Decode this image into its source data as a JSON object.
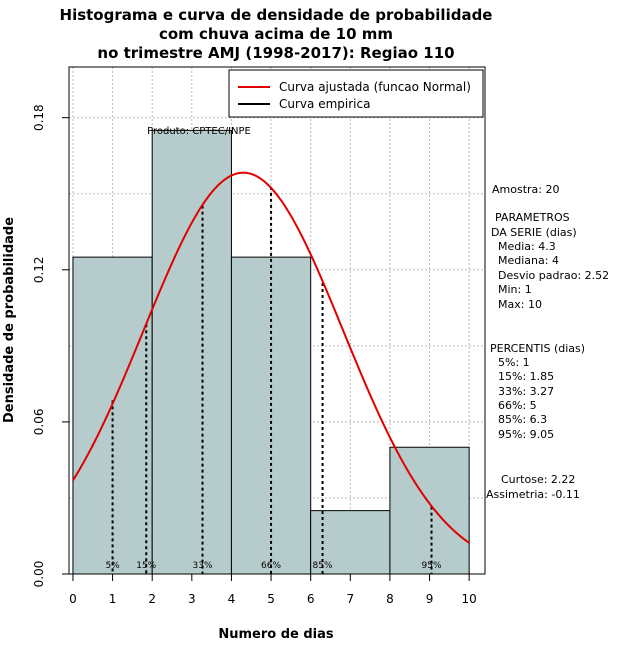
{
  "chart_data": {
    "type": "bar",
    "title_lines": [
      "Histograma e curva de densidade de probabilidade",
      "com chuva acima de 10 mm",
      "no trimestre AMJ (1998-2017): Regiao 110"
    ],
    "xlabel": "Numero de dias",
    "ylabel": "Densidade de probabilidade",
    "xlim": [
      -0.1,
      10.4
    ],
    "ylim": [
      0,
      0.2
    ],
    "x_ticks": [
      0,
      1,
      2,
      3,
      4,
      5,
      6,
      7,
      8,
      9,
      10
    ],
    "y_ticks": [
      0.0,
      0.06,
      0.12,
      0.18
    ],
    "y_tick_labels": [
      "0.00",
      "0.06",
      "0.12",
      "0.18"
    ],
    "bins": [
      {
        "from": 0,
        "to": 2,
        "density": 0.125
      },
      {
        "from": 2,
        "to": 4,
        "density": 0.175
      },
      {
        "from": 4,
        "to": 6,
        "density": 0.125
      },
      {
        "from": 6,
        "to": 8,
        "density": 0.025
      },
      {
        "from": 8,
        "to": 10,
        "density": 0.05
      }
    ],
    "normal_curve": {
      "mean": 4.3,
      "sd": 2.52,
      "from": 0,
      "to": 10
    },
    "percentile_lines": [
      {
        "label": "5%",
        "x": 1,
        "density": 0.0685
      },
      {
        "label": "15%",
        "x": 1.85,
        "density": 0.0985
      },
      {
        "label": "33%",
        "x": 3.27,
        "density": 0.1453
      },
      {
        "label": "66%",
        "x": 5,
        "density": 0.1527
      },
      {
        "label": "85%",
        "x": 6.3,
        "density": 0.1148
      },
      {
        "label": "95%",
        "x": 9.05,
        "density": 0.0266
      }
    ],
    "legend": [
      {
        "label": "Curva ajustada (funcao Normal)",
        "color": "#e00000"
      },
      {
        "label": "Curva empirica",
        "color": "#000000"
      }
    ],
    "source": "Produto: CPTEC/INPE",
    "colors": {
      "bar_fill": "#b6cccc",
      "curve": "#e00000",
      "grid": "#bbbbbb"
    },
    "stats_panel": [
      "Amostra: 20",
      "PARAMETROS",
      "DA SERIE (dias)",
      "Media: 4.3",
      "Mediana: 4",
      "Desvio padrao: 2.52",
      "Min: 1",
      "Max: 10",
      "PERCENTIS (dias)",
      "5%: 1",
      "15%: 1.85",
      "33%: 3.27",
      "66%: 5",
      "85%: 6.3",
      "95%: 9.05",
      "Curtose: 2.22",
      "Assimetria: -0.11"
    ]
  }
}
